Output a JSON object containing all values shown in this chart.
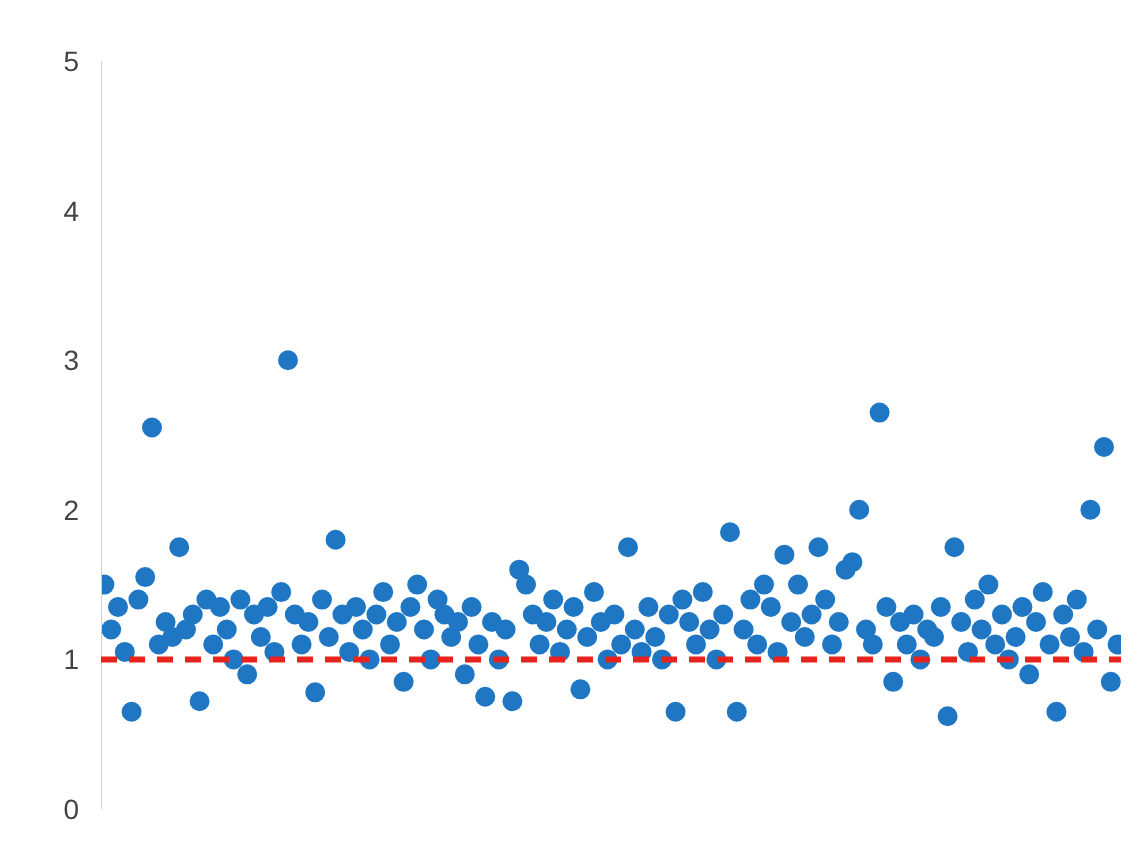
{
  "chart_data": {
    "type": "scatter",
    "categories": [
      null,
      null,
      null,
      null,
      null,
      null,
      null,
      null,
      null,
      null,
      null,
      null,
      null,
      null,
      null,
      null,
      null,
      null,
      null,
      null,
      null,
      null,
      null,
      null,
      null,
      null,
      null,
      null,
      null,
      null,
      null,
      null,
      null,
      null,
      null,
      null,
      null,
      null,
      null,
      null,
      null,
      null,
      null,
      null,
      null,
      null,
      null,
      null,
      null,
      null,
      null,
      null,
      null,
      null,
      null,
      null,
      null,
      null,
      null,
      null,
      null,
      null,
      null,
      null,
      null,
      null,
      null,
      null,
      null,
      null,
      null,
      null,
      null,
      null,
      null,
      null,
      null,
      null,
      null,
      null,
      null,
      null,
      null,
      null,
      null,
      null,
      null,
      null,
      null,
      null,
      null,
      null,
      null,
      null,
      null,
      null,
      null,
      null,
      null,
      null,
      null,
      null,
      null,
      null,
      null,
      null,
      null,
      null,
      null,
      null,
      null,
      null,
      null,
      null,
      null,
      null,
      null,
      null,
      null,
      null,
      null,
      null,
      null,
      null,
      null,
      null,
      null,
      null,
      null,
      null,
      null,
      null,
      null,
      null,
      null,
      null,
      null,
      null,
      null,
      null,
      null,
      null,
      null,
      null,
      null,
      null,
      null,
      null,
      null,
      null
    ],
    "series": [
      {
        "color": "#1f77c4",
        "values": [
          1.5,
          1.2,
          1.35,
          1.05,
          0.65,
          1.4,
          1.55,
          2.55,
          1.1,
          1.25,
          1.15,
          1.75,
          1.2,
          1.3,
          0.72,
          1.4,
          1.1,
          1.35,
          1.2,
          1.0,
          1.4,
          0.9,
          1.3,
          1.15,
          1.35,
          1.05,
          1.45,
          3.0,
          1.3,
          1.1,
          1.25,
          0.78,
          1.4,
          1.15,
          1.8,
          1.3,
          1.05,
          1.35,
          1.2,
          1.0,
          1.3,
          1.45,
          1.1,
          1.25,
          0.85,
          1.35,
          1.5,
          1.2,
          1.0,
          1.4,
          1.3,
          1.15,
          1.25,
          0.9,
          1.35,
          1.1,
          0.75,
          1.25,
          1.0,
          1.2,
          0.72,
          1.6,
          1.5,
          1.3,
          1.1,
          1.25,
          1.4,
          1.05,
          1.2,
          1.35,
          0.8,
          1.15,
          1.45,
          1.25,
          1.0,
          1.3,
          1.1,
          1.75,
          1.2,
          1.05,
          1.35,
          1.15,
          1.0,
          1.3,
          0.65,
          1.4,
          1.25,
          1.1,
          1.45,
          1.2,
          1.0,
          1.3,
          1.85,
          0.65,
          1.2,
          1.4,
          1.1,
          1.5,
          1.35,
          1.05,
          1.7,
          1.25,
          1.5,
          1.15,
          1.3,
          1.75,
          1.4,
          1.1,
          1.25,
          1.6,
          1.65,
          2.0,
          1.2,
          1.1,
          2.65,
          1.35,
          0.85,
          1.25,
          1.1,
          1.3,
          1.0,
          1.2,
          1.15,
          1.35,
          0.62,
          1.75,
          1.25,
          1.05,
          1.4,
          1.2,
          1.5,
          1.1,
          1.3,
          1.0,
          1.15,
          1.35,
          0.9,
          1.25,
          1.45,
          1.1,
          0.65,
          1.3,
          1.15,
          1.4,
          1.05,
          2.0,
          1.2,
          2.42,
          0.85,
          1.1
        ]
      }
    ],
    "ylim": [
      0,
      5
    ],
    "yticks": [
      0,
      1,
      2,
      3,
      4,
      5
    ],
    "marker": "circle",
    "grid": false,
    "tick_labels": "y",
    "ref_lines": [
      {
        "axis": "y",
        "value": 1,
        "color": "#e8221c",
        "line_style": "dashed"
      }
    ]
  }
}
